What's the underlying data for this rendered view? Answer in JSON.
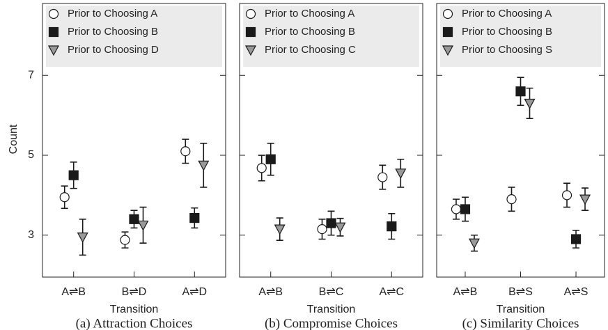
{
  "chart_data": [
    {
      "type": "scatter",
      "ylabel": "Count",
      "xlabel": "Transition",
      "caption": "(a) Attraction Choices",
      "categories": [
        "A⇌B",
        "B⇌D",
        "A⇌D"
      ],
      "ylim": [
        1.95,
        8.8
      ],
      "yticks": [
        3,
        5,
        7
      ],
      "series": [
        {
          "name": "Prior to Choosing A",
          "marker": "circle",
          "color": "#ffffff",
          "values": [
            3.95,
            2.88,
            5.1
          ],
          "errors": [
            0.28,
            0.2,
            0.3
          ]
        },
        {
          "name": "Prior to Choosing B",
          "marker": "square",
          "color": "#1a1a1a",
          "values": [
            4.5,
            3.4,
            3.43
          ],
          "errors": [
            0.33,
            0.22,
            0.25
          ]
        },
        {
          "name": "Prior to Choosing D",
          "marker": "triangle",
          "color": "#999999",
          "values": [
            2.95,
            3.25,
            4.75
          ],
          "errors": [
            0.45,
            0.45,
            0.55
          ]
        }
      ]
    },
    {
      "type": "scatter",
      "xlabel": "Transition",
      "caption": "(b) Compromise Choices",
      "categories": [
        "A⇌B",
        "B⇌C",
        "A⇌C"
      ],
      "ylim": [
        1.95,
        8.8
      ],
      "yticks": [
        3,
        5,
        7
      ],
      "series": [
        {
          "name": "Prior to Choosing A",
          "marker": "circle",
          "color": "#ffffff",
          "values": [
            4.68,
            3.15,
            4.45
          ],
          "errors": [
            0.32,
            0.25,
            0.3
          ]
        },
        {
          "name": "Prior to Choosing B",
          "marker": "square",
          "color": "#1a1a1a",
          "values": [
            4.9,
            3.3,
            3.22
          ],
          "errors": [
            0.4,
            0.3,
            0.32
          ]
        },
        {
          "name": "Prior to Choosing C",
          "marker": "triangle",
          "color": "#999999",
          "values": [
            3.15,
            3.2,
            4.55
          ],
          "errors": [
            0.28,
            0.22,
            0.35
          ]
        }
      ]
    },
    {
      "type": "scatter",
      "xlabel": "Transition",
      "caption": "(c) Similarity Choices",
      "categories": [
        "A⇌B",
        "B⇌S",
        "A⇌S"
      ],
      "ylim": [
        1.95,
        8.8
      ],
      "yticks": [
        3,
        5,
        7
      ],
      "series": [
        {
          "name": "Prior to Choosing A",
          "marker": "circle",
          "color": "#ffffff",
          "values": [
            3.65,
            3.9,
            4.0
          ],
          "errors": [
            0.25,
            0.3,
            0.3
          ]
        },
        {
          "name": "Prior to Choosing B",
          "marker": "square",
          "color": "#1a1a1a",
          "values": [
            3.65,
            6.6,
            2.9
          ],
          "errors": [
            0.3,
            0.35,
            0.22
          ]
        },
        {
          "name": "Prior to Choosing S",
          "marker": "triangle",
          "color": "#999999",
          "values": [
            2.8,
            6.3,
            3.9
          ],
          "errors": [
            0.2,
            0.38,
            0.28
          ]
        }
      ]
    }
  ]
}
